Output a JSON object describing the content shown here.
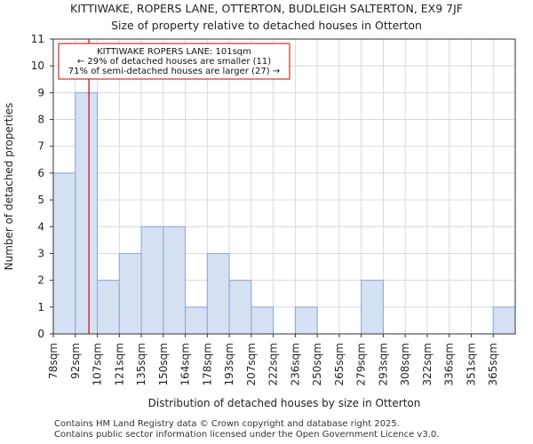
{
  "title_line1": "KITTIWAKE, ROPERS LANE, OTTERTON, BUDLEIGH SALTERTON, EX9 7JF",
  "title_line2": "Size of property relative to detached houses in Otterton",
  "footer_line1": "Contains HM Land Registry data © Crown copyright and database right 2025.",
  "footer_line2": "Contains public sector information licensed under the Open Government Licence v3.0.",
  "colors": {
    "bar_fill": "#d6e0f3",
    "bar_edge": "#8aa4d6",
    "marker": "#cc0000",
    "grid": "#d9d9d9"
  },
  "chart_data": {
    "type": "bar",
    "xlabel": "Distribution of detached houses by size in Otterton",
    "ylabel": "Number of detached properties",
    "categories": [
      "78sqm",
      "92sqm",
      "107sqm",
      "121sqm",
      "135sqm",
      "150sqm",
      "164sqm",
      "178sqm",
      "193sqm",
      "207sqm",
      "222sqm",
      "236sqm",
      "250sqm",
      "265sqm",
      "279sqm",
      "293sqm",
      "308sqm",
      "322sqm",
      "336sqm",
      "351sqm",
      "365sqm"
    ],
    "values": [
      6,
      9,
      2,
      3,
      4,
      4,
      1,
      3,
      2,
      1,
      0,
      1,
      0,
      0,
      2,
      0,
      0,
      0,
      0,
      0,
      1
    ],
    "ylim": [
      0,
      11
    ],
    "yticks": [
      0,
      1,
      2,
      3,
      4,
      5,
      6,
      7,
      8,
      9,
      10,
      11
    ],
    "grid": true,
    "marker": {
      "value_sqm": 101,
      "bin_index_position": 1.62
    },
    "annotation": {
      "line1": "KITTIWAKE ROPERS LANE: 101sqm",
      "line2": "← 29% of detached houses are smaller (11)",
      "line3": "71% of semi-detached houses are larger (27) →"
    }
  }
}
